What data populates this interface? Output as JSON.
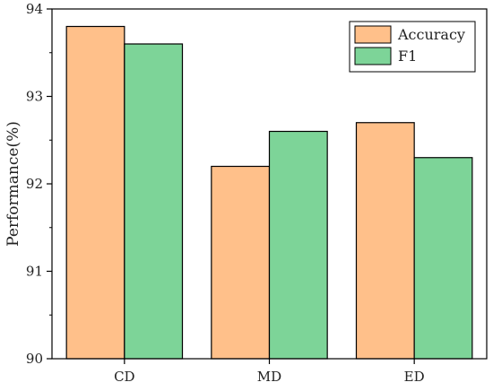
{
  "chart_data": {
    "type": "bar",
    "categories": [
      "CD",
      "MD",
      "ED"
    ],
    "series": [
      {
        "name": "Accuracy",
        "color": "#FFC08A",
        "values": [
          93.8,
          92.2,
          92.7
        ]
      },
      {
        "name": "F1",
        "color": "#7DD498",
        "values": [
          93.6,
          92.6,
          92.3
        ]
      }
    ],
    "ylabel": "Performance(%)",
    "xlabel": "",
    "ylim": [
      90,
      94
    ],
    "yticks": [
      "90",
      "91",
      "92",
      "93",
      "94"
    ],
    "grid": false,
    "legend": "top-right"
  }
}
